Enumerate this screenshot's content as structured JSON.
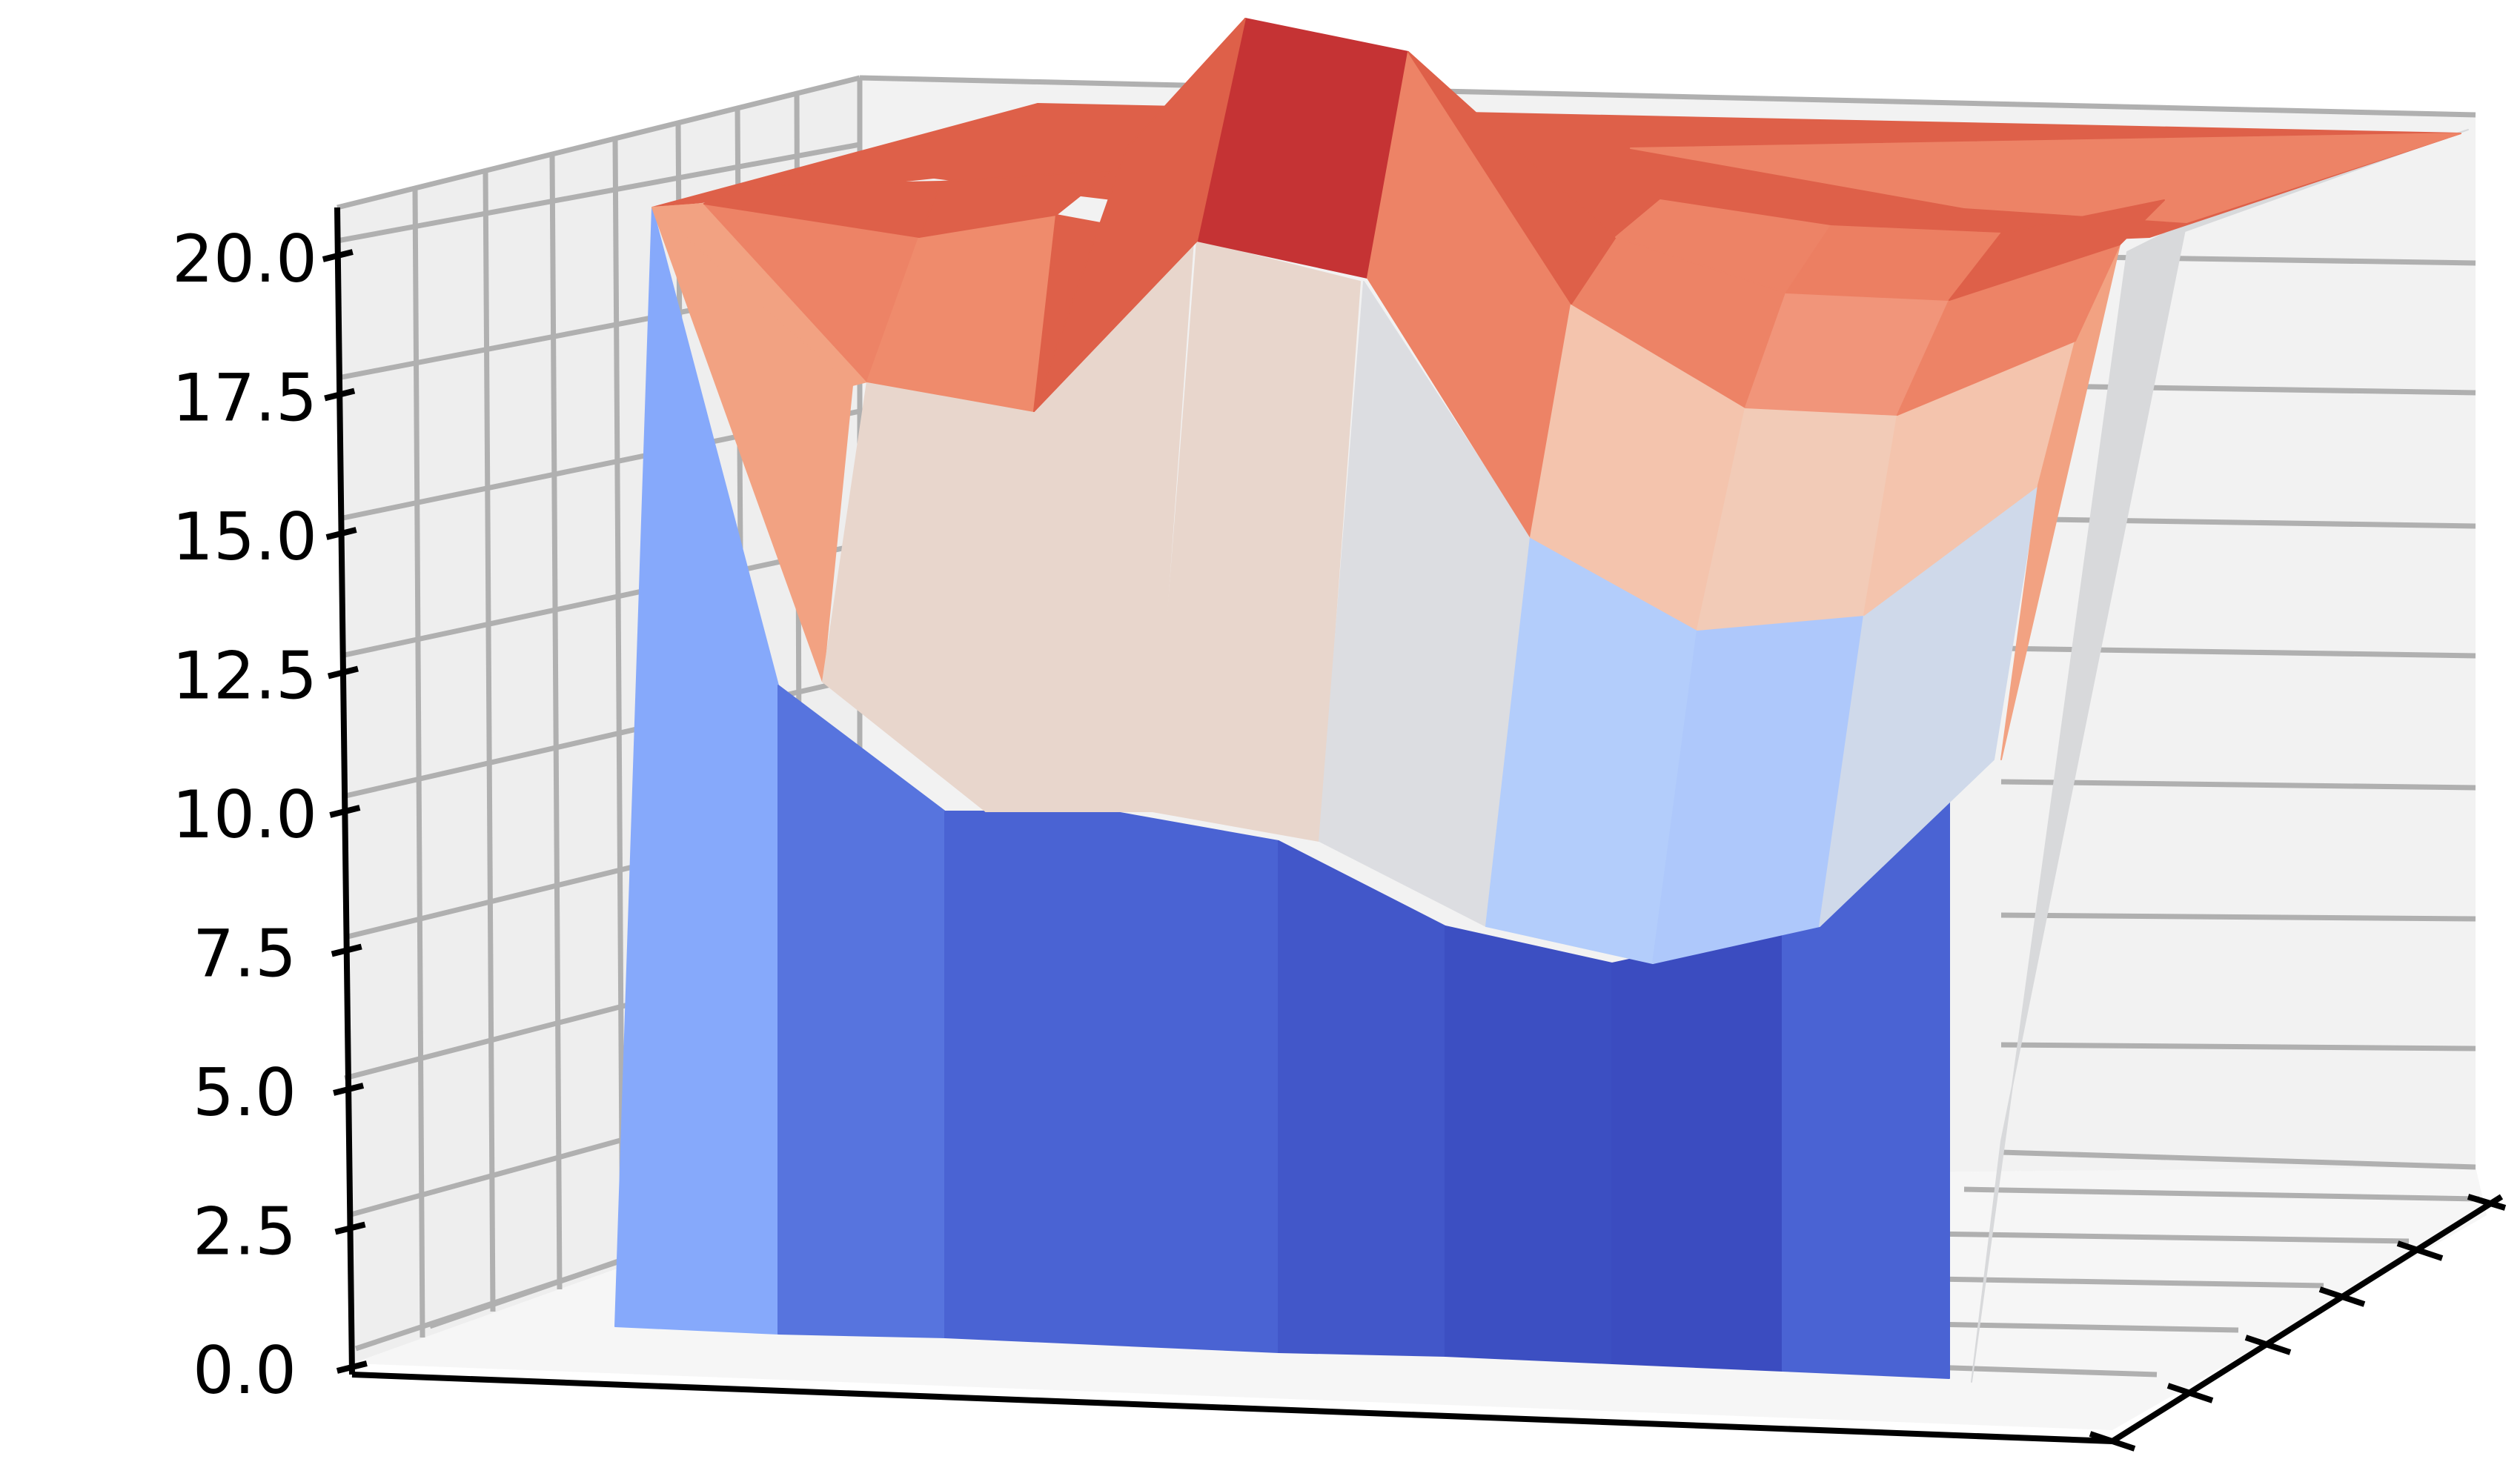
{
  "chart_data": {
    "type": "surface3d",
    "title": "",
    "xlabel": "",
    "ylabel": "",
    "zlabel": "",
    "zlim": [
      0,
      21
    ],
    "z_ticks": [
      "0.0",
      "2.5",
      "5.0",
      "7.5",
      "10.0",
      "12.5",
      "15.0",
      "17.5",
      "20.0"
    ],
    "z_tick_values": [
      0,
      2.5,
      5.0,
      7.5,
      10.0,
      12.5,
      15.0,
      17.5,
      20.0
    ],
    "grid": true,
    "colormap": "coolwarm",
    "front_edge": {
      "description": "base, bottom-layer and top-layer heights along the visible front rows",
      "base_height": 0,
      "blue_top": [
        11.5,
        9.5,
        9.6,
        8.3,
        7.6,
        7.1,
        8.1,
        10.5
      ],
      "mid_top": [
        14.6,
        16.8,
        17.1,
        15.2,
        13.0,
        12.1,
        13.1,
        16.9
      ],
      "upper_top": [
        19.8,
        19.6,
        20.6,
        19.9,
        17.9,
        17.1,
        17.2,
        18.9
      ],
      "peak_height": 20.8
    }
  },
  "colors": {
    "pane_back": "#f2f2f2",
    "pane_side": "#ebebeb",
    "pane_floor": "#f5f5f5",
    "grid": "#b0b0b0",
    "axis": "#000000",
    "surface_blue_dark": "#3b4cc0",
    "surface_blue": "#4a63d3",
    "surface_blue_light": "#86a9fb",
    "surface_pale_blue": "#b3cdfb",
    "surface_neutral": "#dcdde1",
    "surface_cream": "#e8d6cc",
    "surface_peach": "#f4c4ad",
    "surface_salmon": "#f2a282",
    "surface_orange": "#ed8366",
    "surface_red": "#de6049",
    "surface_dark_red": "#c53334",
    "surface_side_gray": "#d8d9db"
  }
}
